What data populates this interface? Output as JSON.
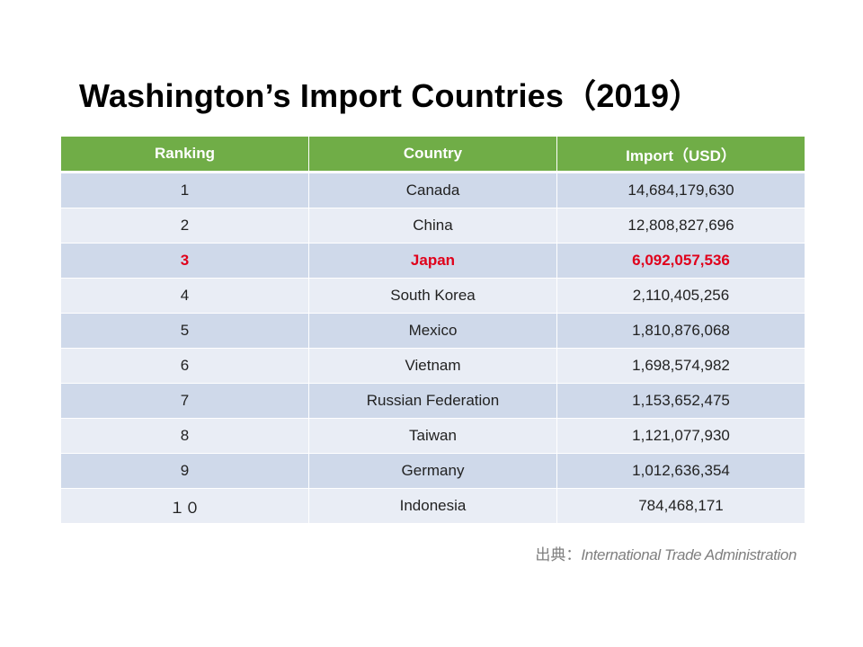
{
  "title": "Washington’s Import Countries（2019）",
  "table": {
    "headers": [
      "Ranking",
      "Country",
      "Import（USD）"
    ],
    "rows": [
      {
        "rank": "1",
        "country": "Canada",
        "import": "14,684,179,630",
        "highlight": false
      },
      {
        "rank": "2",
        "country": "China",
        "import": "12,808,827,696",
        "highlight": false
      },
      {
        "rank": "3",
        "country": "Japan",
        "import": "6,092,057,536",
        "highlight": true
      },
      {
        "rank": "4",
        "country": "South Korea",
        "import": "2,110,405,256",
        "highlight": false
      },
      {
        "rank": "5",
        "country": "Mexico",
        "import": "1,810,876,068",
        "highlight": false
      },
      {
        "rank": "6",
        "country": "Vietnam",
        "import": "1,698,574,982",
        "highlight": false
      },
      {
        "rank": "7",
        "country": "Russian Federation",
        "import": "1,153,652,475",
        "highlight": false
      },
      {
        "rank": "8",
        "country": "Taiwan",
        "import": "1,121,077,930",
        "highlight": false
      },
      {
        "rank": "9",
        "country": "Germany",
        "import": "1,012,636,354",
        "highlight": false
      },
      {
        "rank": "１０",
        "country": "Indonesia",
        "import": "784,468,171",
        "highlight": false
      }
    ]
  },
  "source": {
    "prefix": "出典：",
    "name": "International Trade Administration"
  },
  "colors": {
    "header_bg": "#70ad47",
    "row_odd": "#cfd9ea",
    "row_even": "#e9edf5",
    "highlight_text": "#e0001b"
  }
}
